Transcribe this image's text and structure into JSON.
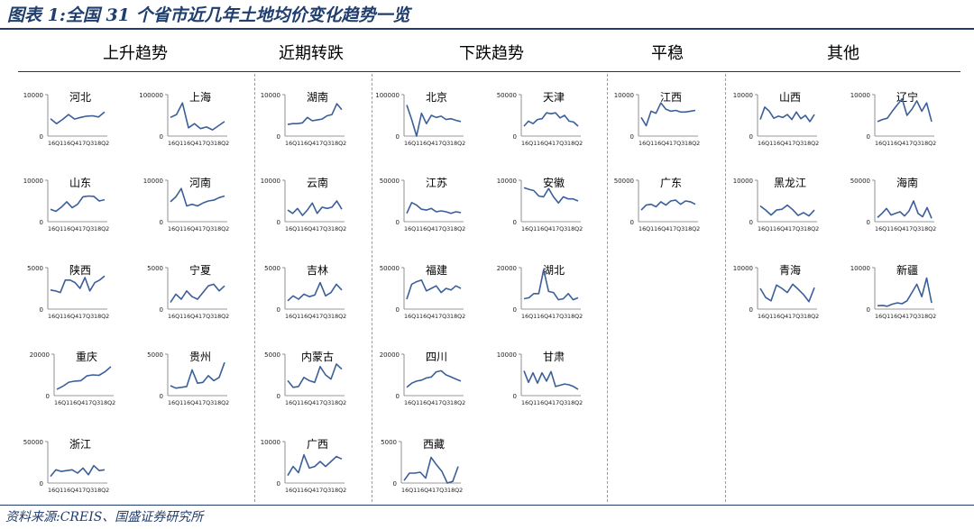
{
  "title": "图表 1:全国 31 个省市近几年土地均价变化趋势一览",
  "source": "资料来源:CREIS、国盛证券研究所",
  "colors": {
    "title": "#1f3d6e",
    "line": "#3b5f99"
  },
  "groups": [
    {
      "label": "上升趋势"
    },
    {
      "label": "近期转跌"
    },
    {
      "label": "下跌趋势"
    },
    {
      "label": "平稳"
    },
    {
      "label": "其他"
    }
  ],
  "x_ticks": [
    "16Q1",
    "16Q4",
    "17Q3",
    "18Q2"
  ],
  "chart_data": [
    {
      "type": "line",
      "title": "河北",
      "group": 0,
      "y_ticks": [
        "10000",
        "0"
      ],
      "ylim": [
        0,
        10000
      ],
      "values": [
        4200,
        3000,
        4000,
        5200,
        4100,
        4500,
        4800,
        4900,
        4600,
        5800
      ]
    },
    {
      "type": "line",
      "title": "上海",
      "group": 0,
      "y_ticks": [
        "100000",
        "0"
      ],
      "ylim": [
        0,
        100000
      ],
      "values": [
        45000,
        52000,
        80000,
        20000,
        30000,
        18000,
        22000,
        15000,
        25000,
        35000
      ]
    },
    {
      "type": "line",
      "title": "山东",
      "group": 0,
      "y_ticks": [
        "10000",
        "0"
      ],
      "ylim": [
        0,
        10000
      ],
      "values": [
        3000,
        2500,
        3500,
        4800,
        3400,
        4200,
        6000,
        6200,
        6100,
        5000,
        5300
      ]
    },
    {
      "type": "line",
      "title": "河南",
      "group": 0,
      "y_ticks": [
        "10000",
        "0"
      ],
      "ylim": [
        0,
        10000
      ],
      "values": [
        4800,
        6000,
        8000,
        3800,
        4200,
        3800,
        4500,
        5000,
        5200,
        5800,
        6200
      ]
    },
    {
      "type": "line",
      "title": "陕西",
      "group": 0,
      "y_ticks": [
        "5000",
        "0"
      ],
      "ylim": [
        0,
        5000
      ],
      "values": [
        2300,
        2200,
        2000,
        3500,
        3500,
        3200,
        2500,
        3800,
        2200,
        3200,
        3500,
        4000
      ]
    },
    {
      "type": "line",
      "title": "宁夏",
      "group": 0,
      "y_ticks": [
        "5000",
        "0"
      ],
      "ylim": [
        0,
        5000
      ],
      "values": [
        800,
        1800,
        1200,
        2200,
        1500,
        1200,
        2000,
        2800,
        3000,
        2200,
        2800
      ]
    },
    {
      "type": "line",
      "title": "重庆",
      "group": 0,
      "y_ticks": [
        "20000",
        "0"
      ],
      "ylim": [
        0,
        20000
      ],
      "values": [
        3000,
        4500,
        6500,
        7000,
        7200,
        9500,
        10000,
        9800,
        11500,
        14000
      ]
    },
    {
      "type": "line",
      "title": "贵州",
      "group": 0,
      "y_ticks": [
        "5000",
        "0"
      ],
      "ylim": [
        0,
        5000
      ],
      "values": [
        1200,
        900,
        1000,
        1100,
        3100,
        1500,
        1600,
        2400,
        1800,
        2200,
        4000
      ]
    },
    {
      "type": "line",
      "title": "浙江",
      "group": 0,
      "y_ticks": [
        "50000",
        "0"
      ],
      "ylim": [
        0,
        50000
      ],
      "values": [
        8000,
        16000,
        14000,
        15000,
        16000,
        12000,
        18000,
        10000,
        21000,
        15000,
        16000
      ]
    },
    {
      "type": "line",
      "title": "湖南",
      "group": 1,
      "y_ticks": [
        "10000",
        "0"
      ],
      "ylim": [
        0,
        10000
      ],
      "values": [
        2800,
        3000,
        3000,
        3200,
        4500,
        3700,
        3900,
        4100,
        4900,
        5200,
        7800,
        6400
      ]
    },
    {
      "type": "line",
      "title": "云南",
      "group": 1,
      "y_ticks": [
        "10000",
        "0"
      ],
      "ylim": [
        0,
        10000
      ],
      "values": [
        2800,
        2000,
        3200,
        1500,
        2800,
        4500,
        2000,
        3500,
        3200,
        3500,
        5000,
        3000
      ]
    },
    {
      "type": "line",
      "title": "吉林",
      "group": 1,
      "y_ticks": [
        "5000",
        "0"
      ],
      "ylim": [
        0,
        5000
      ],
      "values": [
        1000,
        1600,
        1200,
        1800,
        1500,
        1700,
        3200,
        1600,
        2000,
        3000,
        2300
      ]
    },
    {
      "type": "line",
      "title": "内蒙古",
      "group": 1,
      "y_ticks": [
        "5000",
        "0"
      ],
      "ylim": [
        0,
        5000
      ],
      "values": [
        1800,
        1000,
        1100,
        2200,
        1800,
        1600,
        3500,
        2500,
        2000,
        3800,
        3200
      ]
    },
    {
      "type": "line",
      "title": "广西",
      "group": 1,
      "y_ticks": [
        "10000",
        "0"
      ],
      "ylim": [
        0,
        10000
      ],
      "values": [
        1800,
        4000,
        2500,
        6800,
        3600,
        4000,
        5200,
        4000,
        5200,
        6400,
        5800
      ]
    },
    {
      "type": "line",
      "title": "北京",
      "group": 2,
      "y_ticks": [
        "100000",
        "0"
      ],
      "ylim": [
        0,
        100000
      ],
      "values": [
        75000,
        40000,
        0,
        55000,
        30000,
        50000,
        45000,
        48000,
        40000,
        42000,
        38000,
        35000
      ]
    },
    {
      "type": "line",
      "title": "天津",
      "group": 2,
      "y_ticks": [
        "50000",
        "0"
      ],
      "ylim": [
        0,
        50000
      ],
      "values": [
        12000,
        18000,
        15000,
        20000,
        21000,
        28000,
        27000,
        28000,
        22000,
        25000,
        18000,
        17000,
        12000
      ]
    },
    {
      "type": "line",
      "title": "江苏",
      "group": 2,
      "y_ticks": [
        "50000",
        "0"
      ],
      "ylim": [
        0,
        50000
      ],
      "values": [
        10000,
        23000,
        20000,
        15000,
        14000,
        16000,
        12000,
        13000,
        12000,
        10000,
        12000,
        11000
      ]
    },
    {
      "type": "line",
      "title": "安徽",
      "group": 2,
      "y_ticks": [
        "10000",
        "0"
      ],
      "ylim": [
        0,
        10000
      ],
      "values": [
        8200,
        7800,
        7500,
        6200,
        6000,
        8000,
        6000,
        4500,
        6000,
        5500,
        5500,
        5000
      ]
    },
    {
      "type": "line",
      "title": "福建",
      "group": 2,
      "y_ticks": [
        "50000",
        "0"
      ],
      "ylim": [
        0,
        50000
      ],
      "values": [
        12000,
        30000,
        33000,
        35000,
        22000,
        25000,
        28000,
        20000,
        25000,
        23000,
        28000,
        25000
      ]
    },
    {
      "type": "line",
      "title": "湖北",
      "group": 2,
      "y_ticks": [
        "20000",
        "0"
      ],
      "ylim": [
        0,
        20000
      ],
      "values": [
        5000,
        5500,
        7500,
        7500,
        19000,
        8500,
        8000,
        4500,
        5000,
        7500,
        4500,
        5500
      ]
    },
    {
      "type": "line",
      "title": "四川",
      "group": 2,
      "y_ticks": [
        "20000",
        "0"
      ],
      "ylim": [
        0,
        20000
      ],
      "values": [
        4000,
        6000,
        7000,
        7500,
        8500,
        9000,
        11500,
        12000,
        10000,
        9000,
        8000,
        7000
      ]
    },
    {
      "type": "line",
      "title": "甘肃",
      "group": 2,
      "y_ticks": [
        "10000",
        "0"
      ],
      "ylim": [
        0,
        10000
      ],
      "values": [
        6000,
        3200,
        5500,
        3000,
        5500,
        3500,
        5800,
        2200,
        2500,
        2800,
        2600,
        2200,
        1500
      ]
    },
    {
      "type": "line",
      "title": "西藏",
      "group": 2,
      "y_ticks": [
        "5000",
        "0"
      ],
      "ylim": [
        0,
        5000
      ],
      "values": [
        300,
        1200,
        1200,
        1300,
        600,
        3100,
        2200,
        1400,
        0,
        200,
        2000
      ]
    },
    {
      "type": "line",
      "title": "江西",
      "group": 3,
      "y_ticks": [
        "10000",
        "0"
      ],
      "ylim": [
        0,
        10000
      ],
      "values": [
        4500,
        2500,
        6000,
        5500,
        8000,
        6500,
        6000,
        6200,
        5800,
        5800,
        6000,
        6200
      ]
    },
    {
      "type": "line",
      "title": "广东",
      "group": 3,
      "y_ticks": [
        "50000",
        "0"
      ],
      "ylim": [
        0,
        50000
      ],
      "values": [
        14000,
        20000,
        21000,
        18000,
        24000,
        20000,
        25000,
        26000,
        21000,
        25000,
        24000,
        21000
      ]
    },
    {
      "type": "line",
      "title": "山西",
      "group": 4,
      "y_ticks": [
        "10000",
        "0"
      ],
      "ylim": [
        0,
        10000
      ],
      "values": [
        4000,
        7000,
        6000,
        4300,
        4800,
        4500,
        5200,
        4000,
        5800,
        4200,
        5000,
        3500,
        5200
      ]
    },
    {
      "type": "line",
      "title": "辽宁",
      "group": 4,
      "y_ticks": [
        "10000",
        "0"
      ],
      "ylim": [
        0,
        10000
      ],
      "values": [
        3500,
        4000,
        4300,
        6000,
        7500,
        9000,
        5000,
        6500,
        8500,
        6000,
        8000,
        3500
      ]
    },
    {
      "type": "line",
      "title": "黑龙江",
      "group": 4,
      "y_ticks": [
        "10000",
        "0"
      ],
      "ylim": [
        0,
        10000
      ],
      "values": [
        3800,
        2800,
        1600,
        2800,
        3000,
        4000,
        2900,
        1500,
        2200,
        1400,
        2800
      ]
    },
    {
      "type": "line",
      "title": "海南",
      "group": 4,
      "y_ticks": [
        "50000",
        "0"
      ],
      "ylim": [
        0,
        50000
      ],
      "values": [
        5000,
        10000,
        16000,
        8000,
        10000,
        12000,
        7000,
        13000,
        25000,
        10000,
        6000,
        17000,
        4000
      ]
    },
    {
      "type": "line",
      "title": "青海",
      "group": 4,
      "y_ticks": [
        "10000",
        "0"
      ],
      "ylim": [
        0,
        10000
      ],
      "values": [
        5000,
        2800,
        2000,
        5800,
        5000,
        4000,
        6000,
        4800,
        3500,
        1800,
        5200
      ]
    },
    {
      "type": "line",
      "title": "新疆",
      "group": 4,
      "y_ticks": [
        "10000",
        "0"
      ],
      "ylim": [
        0,
        10000
      ],
      "values": [
        800,
        900,
        700,
        1200,
        1500,
        1300,
        2000,
        4000,
        6000,
        3000,
        7500,
        1500
      ]
    }
  ]
}
